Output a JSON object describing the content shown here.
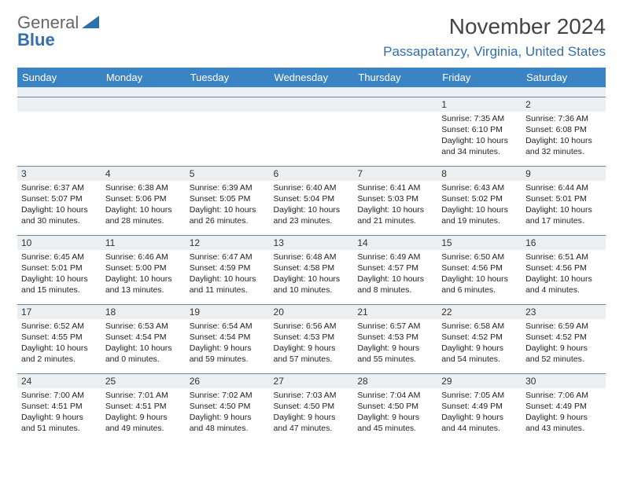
{
  "brand": {
    "line1": "General",
    "line2": "Blue",
    "tri_color": "#2f6fae"
  },
  "title": {
    "month": "November 2024",
    "location": "Passapatanzy, Virginia, United States"
  },
  "headers": [
    "Sunday",
    "Monday",
    "Tuesday",
    "Wednesday",
    "Thursday",
    "Friday",
    "Saturday"
  ],
  "colors": {
    "header_bg": "#3b84c4",
    "header_fg": "#ffffff",
    "rule": "#6d88a0",
    "daynum_bg": "#eceff1",
    "accent": "#2f6fae",
    "text": "#222222",
    "muted": "#666666"
  },
  "typography": {
    "month_fontsize": 28,
    "loc_fontsize": 17,
    "header_fontsize": 13,
    "daynum_fontsize": 12,
    "body_fontsize": 10.5
  },
  "weeks": [
    [
      null,
      null,
      null,
      null,
      null,
      {
        "n": "1",
        "sr": "7:35 AM",
        "ss": "6:10 PM",
        "dl": "10 hours and 34 minutes."
      },
      {
        "n": "2",
        "sr": "7:36 AM",
        "ss": "6:08 PM",
        "dl": "10 hours and 32 minutes."
      }
    ],
    [
      {
        "n": "3",
        "sr": "6:37 AM",
        "ss": "5:07 PM",
        "dl": "10 hours and 30 minutes."
      },
      {
        "n": "4",
        "sr": "6:38 AM",
        "ss": "5:06 PM",
        "dl": "10 hours and 28 minutes."
      },
      {
        "n": "5",
        "sr": "6:39 AM",
        "ss": "5:05 PM",
        "dl": "10 hours and 26 minutes."
      },
      {
        "n": "6",
        "sr": "6:40 AM",
        "ss": "5:04 PM",
        "dl": "10 hours and 23 minutes."
      },
      {
        "n": "7",
        "sr": "6:41 AM",
        "ss": "5:03 PM",
        "dl": "10 hours and 21 minutes."
      },
      {
        "n": "8",
        "sr": "6:43 AM",
        "ss": "5:02 PM",
        "dl": "10 hours and 19 minutes."
      },
      {
        "n": "9",
        "sr": "6:44 AM",
        "ss": "5:01 PM",
        "dl": "10 hours and 17 minutes."
      }
    ],
    [
      {
        "n": "10",
        "sr": "6:45 AM",
        "ss": "5:01 PM",
        "dl": "10 hours and 15 minutes."
      },
      {
        "n": "11",
        "sr": "6:46 AM",
        "ss": "5:00 PM",
        "dl": "10 hours and 13 minutes."
      },
      {
        "n": "12",
        "sr": "6:47 AM",
        "ss": "4:59 PM",
        "dl": "10 hours and 11 minutes."
      },
      {
        "n": "13",
        "sr": "6:48 AM",
        "ss": "4:58 PM",
        "dl": "10 hours and 10 minutes."
      },
      {
        "n": "14",
        "sr": "6:49 AM",
        "ss": "4:57 PM",
        "dl": "10 hours and 8 minutes."
      },
      {
        "n": "15",
        "sr": "6:50 AM",
        "ss": "4:56 PM",
        "dl": "10 hours and 6 minutes."
      },
      {
        "n": "16",
        "sr": "6:51 AM",
        "ss": "4:56 PM",
        "dl": "10 hours and 4 minutes."
      }
    ],
    [
      {
        "n": "17",
        "sr": "6:52 AM",
        "ss": "4:55 PM",
        "dl": "10 hours and 2 minutes."
      },
      {
        "n": "18",
        "sr": "6:53 AM",
        "ss": "4:54 PM",
        "dl": "10 hours and 0 minutes."
      },
      {
        "n": "19",
        "sr": "6:54 AM",
        "ss": "4:54 PM",
        "dl": "9 hours and 59 minutes."
      },
      {
        "n": "20",
        "sr": "6:56 AM",
        "ss": "4:53 PM",
        "dl": "9 hours and 57 minutes."
      },
      {
        "n": "21",
        "sr": "6:57 AM",
        "ss": "4:53 PM",
        "dl": "9 hours and 55 minutes."
      },
      {
        "n": "22",
        "sr": "6:58 AM",
        "ss": "4:52 PM",
        "dl": "9 hours and 54 minutes."
      },
      {
        "n": "23",
        "sr": "6:59 AM",
        "ss": "4:52 PM",
        "dl": "9 hours and 52 minutes."
      }
    ],
    [
      {
        "n": "24",
        "sr": "7:00 AM",
        "ss": "4:51 PM",
        "dl": "9 hours and 51 minutes."
      },
      {
        "n": "25",
        "sr": "7:01 AM",
        "ss": "4:51 PM",
        "dl": "9 hours and 49 minutes."
      },
      {
        "n": "26",
        "sr": "7:02 AM",
        "ss": "4:50 PM",
        "dl": "9 hours and 48 minutes."
      },
      {
        "n": "27",
        "sr": "7:03 AM",
        "ss": "4:50 PM",
        "dl": "9 hours and 47 minutes."
      },
      {
        "n": "28",
        "sr": "7:04 AM",
        "ss": "4:50 PM",
        "dl": "9 hours and 45 minutes."
      },
      {
        "n": "29",
        "sr": "7:05 AM",
        "ss": "4:49 PM",
        "dl": "9 hours and 44 minutes."
      },
      {
        "n": "30",
        "sr": "7:06 AM",
        "ss": "4:49 PM",
        "dl": "9 hours and 43 minutes."
      }
    ]
  ],
  "labels": {
    "sunrise": "Sunrise:",
    "sunset": "Sunset:",
    "daylight": "Daylight:"
  }
}
